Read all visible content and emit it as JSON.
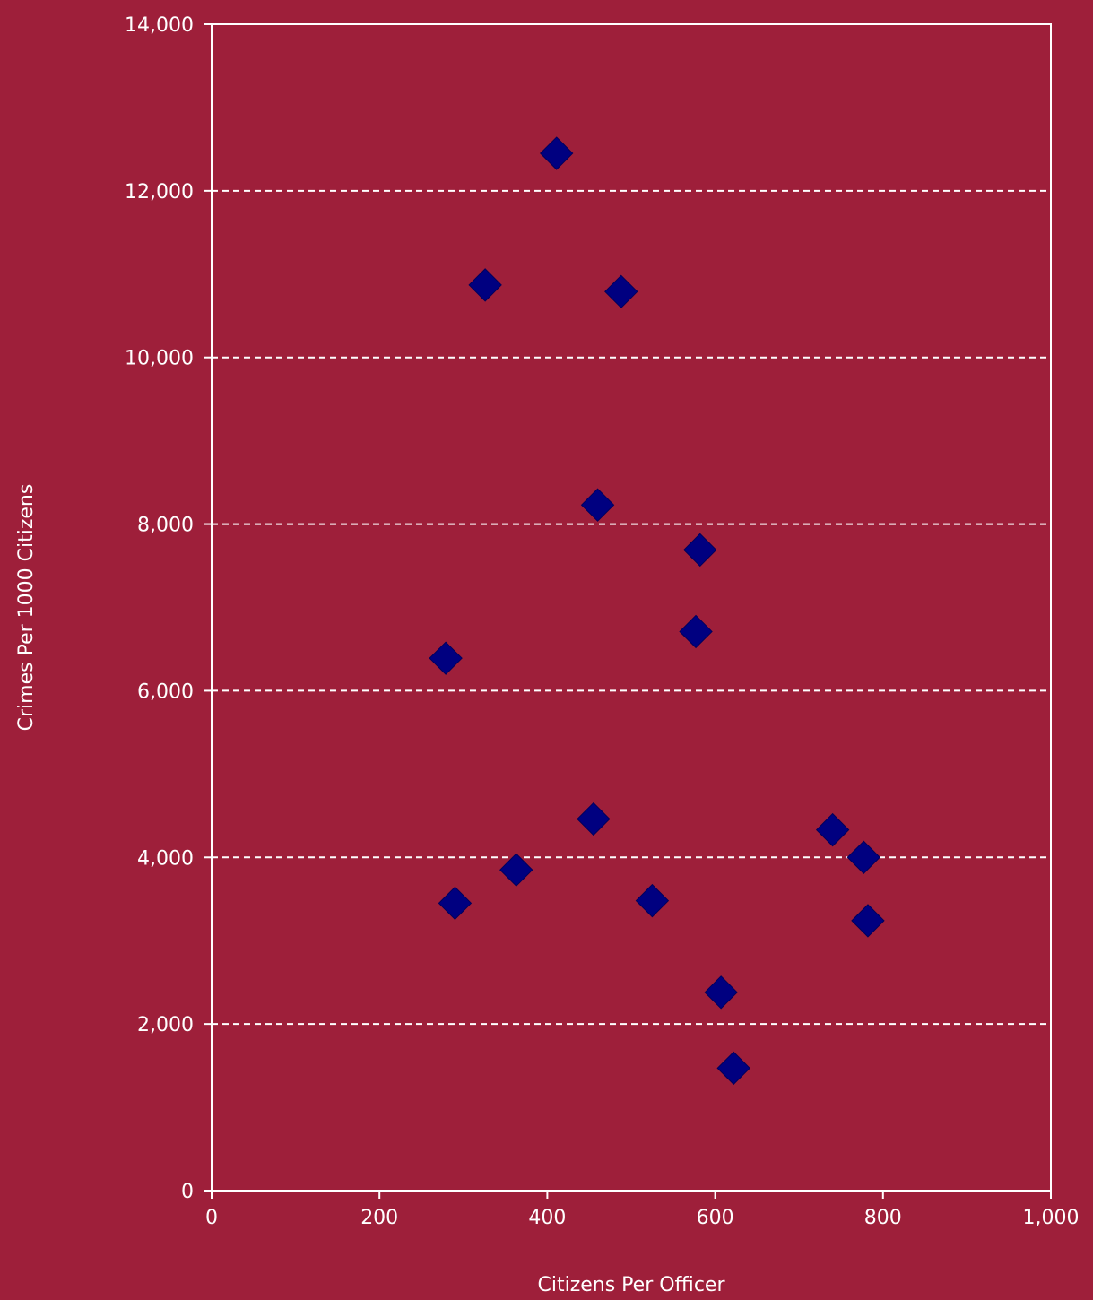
{
  "chart_data": {
    "type": "scatter",
    "title": "",
    "xlabel": "Citizens Per Officer",
    "ylabel": "Crimes Per 1000 Citizens",
    "xlim": [
      0,
      1000
    ],
    "ylim": [
      0,
      14000
    ],
    "x_ticks": [
      "0",
      "200",
      "400",
      "600",
      "800",
      "1,000"
    ],
    "y_ticks": [
      "0",
      "2,000",
      "4,000",
      "6,000",
      "8,000",
      "10,000",
      "12,000",
      "14,000"
    ],
    "grid": "horizontal dashed",
    "marker": "diamond",
    "colors": {
      "background": "#9e1f3a",
      "marker": "#000080",
      "axis": "#ffffff",
      "grid": "#ffffff"
    },
    "points": [
      {
        "x": 411,
        "y": 12450
      },
      {
        "x": 326,
        "y": 10870
      },
      {
        "x": 488,
        "y": 10790
      },
      {
        "x": 460,
        "y": 8230
      },
      {
        "x": 582,
        "y": 7690
      },
      {
        "x": 577,
        "y": 6710
      },
      {
        "x": 279,
        "y": 6390
      },
      {
        "x": 455,
        "y": 4460
      },
      {
        "x": 740,
        "y": 4330
      },
      {
        "x": 777,
        "y": 4000
      },
      {
        "x": 363,
        "y": 3850
      },
      {
        "x": 290,
        "y": 3450
      },
      {
        "x": 525,
        "y": 3480
      },
      {
        "x": 782,
        "y": 3240
      },
      {
        "x": 607,
        "y": 2380
      },
      {
        "x": 622,
        "y": 1470
      }
    ]
  }
}
